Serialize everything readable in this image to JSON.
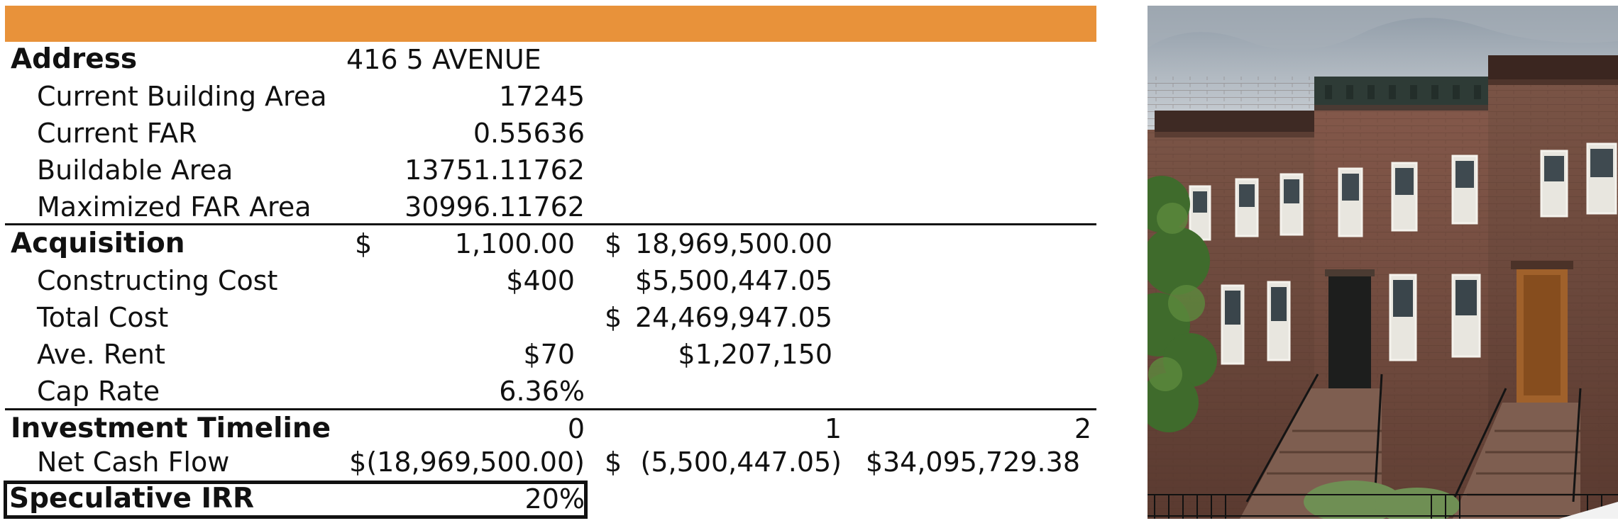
{
  "property": {
    "address_label": "Address",
    "address_value": "416 5 AVENUE",
    "current_building_area_label": "Current Building Area",
    "current_building_area_value": "17245",
    "current_far_label": "Current FAR",
    "current_far_value": "0.55636",
    "buildable_area_label": "Buildable Area",
    "buildable_area_value": "13751.11762",
    "maximized_far_area_label": "Maximized FAR Area",
    "maximized_far_area_value": "30996.11762"
  },
  "costs": {
    "acquisition_label": "Acquisition",
    "acquisition_currency_1": "$",
    "acquisition_rate": "1,100.00",
    "acquisition_currency_2": "$",
    "acquisition_total": "18,969,500.00",
    "constructing_cost_label": "Constructing Cost",
    "constructing_cost_rate": "$400",
    "constructing_cost_total": "$5,500,447.05",
    "total_cost_label": "Total Cost",
    "total_cost_currency": "$",
    "total_cost_value": "24,469,947.05",
    "ave_rent_label": "Ave. Rent",
    "ave_rent_rate": "$70",
    "ave_rent_total": "$1,207,150",
    "cap_rate_label": "Cap Rate",
    "cap_rate_value": "6.36%"
  },
  "timeline": {
    "label": "Investment Timeline",
    "periods": [
      "0",
      "1",
      "2"
    ],
    "net_cash_flow_label": "Net Cash Flow",
    "net_cash_flow_0": "$(18,969,500.00)",
    "net_cash_flow_1_currency": "$",
    "net_cash_flow_1": "(5,500,447.05)",
    "net_cash_flow_2": "$34,095,729.38"
  },
  "irr": {
    "label": "Speculative IRR",
    "value": "20%"
  },
  "colors": {
    "header_bar": "#e8923a"
  },
  "photo": {
    "icon": "brownstone-building-photo"
  }
}
